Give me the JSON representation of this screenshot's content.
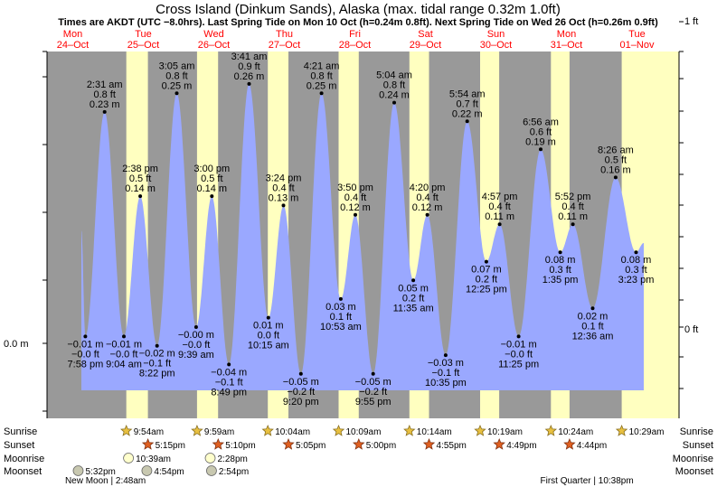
{
  "chart_data": {
    "type": "area",
    "title": "Cross Island (Dinkum Sands), Alaska (max. tidal range 0.32m 1.0ft)",
    "subtitle": "Times are AKDT (UTC −8.0hrs). Last Spring Tide on Mon 10 Oct (h=0.24m 0.8ft). Next Spring Tide on Wed 26 Oct (h=0.26m 0.9ft)",
    "left_axis_label": "0.0 m",
    "right_axis_labels": [
      "1 ft",
      "0 ft"
    ],
    "days": [
      {
        "weekday": "Mon",
        "date": "24–Oct"
      },
      {
        "weekday": "Tue",
        "date": "25–Oct"
      },
      {
        "weekday": "Wed",
        "date": "26–Oct"
      },
      {
        "weekday": "Thu",
        "date": "27–Oct"
      },
      {
        "weekday": "Fri",
        "date": "28–Oct"
      },
      {
        "weekday": "Sat",
        "date": "29–Oct"
      },
      {
        "weekday": "Sun",
        "date": "30–Oct"
      },
      {
        "weekday": "Mon",
        "date": "31–Oct"
      },
      {
        "weekday": "Tue",
        "date": "01–Nov"
      }
    ],
    "tides": [
      {
        "day": 0,
        "time": "7:58 pm",
        "m": "−0.01 m",
        "ft": "−0.0 ft",
        "h": -0.01,
        "type": "low"
      },
      {
        "day": 1,
        "time": "2:31 am",
        "m": "0.23 m",
        "ft": "0.8 ft",
        "h": 0.23,
        "type": "high"
      },
      {
        "day": 1,
        "time": "9:04 am",
        "m": "−0.01 m",
        "ft": "−0.0 ft",
        "h": -0.01,
        "type": "low"
      },
      {
        "day": 1,
        "time": "2:38 pm",
        "m": "0.14 m",
        "ft": "0.5 ft",
        "h": 0.14,
        "type": "high"
      },
      {
        "day": 1,
        "time": "8:22 pm",
        "m": "−0.02 m",
        "ft": "−0.1 ft",
        "h": -0.02,
        "type": "low"
      },
      {
        "day": 2,
        "time": "3:05 am",
        "m": "0.25 m",
        "ft": "0.8 ft",
        "h": 0.25,
        "type": "high"
      },
      {
        "day": 2,
        "time": "9:39 am",
        "m": "−0.00 m",
        "ft": "−0.0 ft",
        "h": 0.0,
        "type": "low"
      },
      {
        "day": 2,
        "time": "3:00 pm",
        "m": "0.14 m",
        "ft": "0.5 ft",
        "h": 0.14,
        "type": "high"
      },
      {
        "day": 2,
        "time": "8:49 pm",
        "m": "−0.04 m",
        "ft": "−0.1 ft",
        "h": -0.04,
        "type": "low"
      },
      {
        "day": 3,
        "time": "3:41 am",
        "m": "0.26 m",
        "ft": "0.9 ft",
        "h": 0.26,
        "type": "high"
      },
      {
        "day": 3,
        "time": "10:15 am",
        "m": "0.01 m",
        "ft": "0.0 ft",
        "h": 0.01,
        "type": "low"
      },
      {
        "day": 3,
        "time": "3:24 pm",
        "m": "0.13 m",
        "ft": "0.4 ft",
        "h": 0.13,
        "type": "high"
      },
      {
        "day": 3,
        "time": "9:20 pm",
        "m": "−0.05 m",
        "ft": "−0.2 ft",
        "h": -0.05,
        "type": "low"
      },
      {
        "day": 4,
        "time": "4:21 am",
        "m": "0.25 m",
        "ft": "0.8 ft",
        "h": 0.25,
        "type": "high"
      },
      {
        "day": 4,
        "time": "10:53 am",
        "m": "0.03 m",
        "ft": "0.1 ft",
        "h": 0.03,
        "type": "low"
      },
      {
        "day": 4,
        "time": "3:50 pm",
        "m": "0.12 m",
        "ft": "0.4 ft",
        "h": 0.12,
        "type": "high"
      },
      {
        "day": 4,
        "time": "9:55 pm",
        "m": "−0.05 m",
        "ft": "−0.2 ft",
        "h": -0.05,
        "type": "low"
      },
      {
        "day": 5,
        "time": "5:04 am",
        "m": "0.24 m",
        "ft": "0.8 ft",
        "h": 0.24,
        "type": "high"
      },
      {
        "day": 5,
        "time": "11:35 am",
        "m": "0.05 m",
        "ft": "0.2 ft",
        "h": 0.05,
        "type": "low"
      },
      {
        "day": 5,
        "time": "4:20 pm",
        "m": "0.12 m",
        "ft": "0.4 ft",
        "h": 0.12,
        "type": "high"
      },
      {
        "day": 5,
        "time": "10:35 pm",
        "m": "−0.03 m",
        "ft": "−0.1 ft",
        "h": -0.03,
        "type": "low"
      },
      {
        "day": 6,
        "time": "5:54 am",
        "m": "0.22 m",
        "ft": "0.7 ft",
        "h": 0.22,
        "type": "high"
      },
      {
        "day": 6,
        "time": "12:25 pm",
        "m": "0.07 m",
        "ft": "0.2 ft",
        "h": 0.07,
        "type": "low"
      },
      {
        "day": 6,
        "time": "4:57 pm",
        "m": "0.11 m",
        "ft": "0.4 ft",
        "h": 0.11,
        "type": "high"
      },
      {
        "day": 6,
        "time": "11:25 pm",
        "m": "−0.01 m",
        "ft": "−0.0 ft",
        "h": -0.01,
        "type": "low"
      },
      {
        "day": 7,
        "time": "6:56 am",
        "m": "0.19 m",
        "ft": "0.6 ft",
        "h": 0.19,
        "type": "high"
      },
      {
        "day": 7,
        "time": "1:35 pm",
        "m": "0.08 m",
        "ft": "0.3 ft",
        "h": 0.08,
        "type": "low"
      },
      {
        "day": 7,
        "time": "5:52 pm",
        "m": "0.11 m",
        "ft": "0.4 ft",
        "h": 0.11,
        "type": "high"
      },
      {
        "day": 8,
        "time": "12:36 am",
        "m": "0.02 m",
        "ft": "0.1 ft",
        "h": 0.02,
        "type": "low"
      },
      {
        "day": 8,
        "time": "8:26 am",
        "m": "0.16 m",
        "ft": "0.5 ft",
        "h": 0.16,
        "type": "high"
      },
      {
        "day": 8,
        "time": "3:23 pm",
        "m": "0.08 m",
        "ft": "0.3 ft",
        "h": 0.08,
        "type": "low"
      }
    ],
    "astro_rows": [
      "Sunrise",
      "Sunset",
      "Moonrise",
      "Moonset"
    ],
    "sunrise": [
      {
        "day": 1,
        "time": "9:54am"
      },
      {
        "day": 2,
        "time": "9:59am"
      },
      {
        "day": 3,
        "time": "10:04am"
      },
      {
        "day": 4,
        "time": "10:09am"
      },
      {
        "day": 5,
        "time": "10:14am"
      },
      {
        "day": 6,
        "time": "10:19am"
      },
      {
        "day": 7,
        "time": "10:24am"
      },
      {
        "day": 8,
        "time": "10:29am"
      }
    ],
    "sunset": [
      {
        "day": 1,
        "time": "5:15pm"
      },
      {
        "day": 2,
        "time": "5:10pm"
      },
      {
        "day": 3,
        "time": "5:05pm"
      },
      {
        "day": 4,
        "time": "5:00pm"
      },
      {
        "day": 5,
        "time": "4:55pm"
      },
      {
        "day": 6,
        "time": "4:49pm"
      },
      {
        "day": 7,
        "time": "4:44pm"
      }
    ],
    "moonrise": [
      {
        "day": 1,
        "time": "10:39am"
      },
      {
        "day": 2,
        "time": "2:28pm"
      }
    ],
    "moonset": [
      {
        "day": 0,
        "time": "5:32pm"
      },
      {
        "day": 1,
        "time": "4:54pm"
      },
      {
        "day": 2,
        "time": "2:54pm"
      }
    ],
    "moon_phases": [
      {
        "day": 1,
        "time": "2:48am",
        "phase": "New Moon"
      },
      {
        "day": 7,
        "time": "10:38pm",
        "phase": "First Quarter"
      }
    ]
  }
}
